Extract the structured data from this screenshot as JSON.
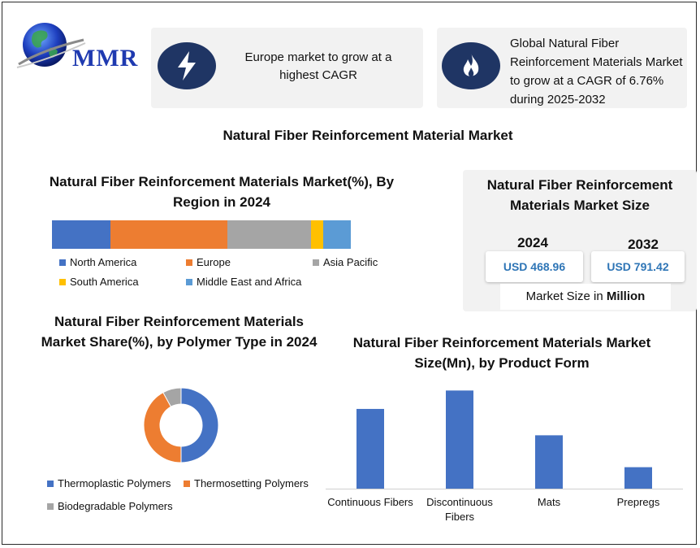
{
  "logo": {
    "text": "MMR"
  },
  "info_cards": [
    {
      "icon": "lightning-icon",
      "text": "Europe market to grow at a highest CAGR"
    },
    {
      "icon": "flame-icon",
      "text": "Global Natural Fiber Reinforcement Materials Market to grow at a CAGR of 6.76% during 2025-2032"
    }
  ],
  "main_title": "Natural Fiber Reinforcement Material Market",
  "market_size": {
    "title": "Natural Fiber Reinforcement Materials Market Size",
    "years": [
      {
        "year": "2024",
        "value": "USD 468.96"
      },
      {
        "year": "2032",
        "value": "USD 791.42"
      }
    ],
    "footer_prefix": "Market Size in ",
    "footer_bold": "Million"
  },
  "colors": {
    "blue": "#4472c4",
    "orange": "#ed7d31",
    "gray": "#a5a5a5",
    "yellow": "#ffc000",
    "lightblue": "#5b9bd5",
    "navy": "#1f3564"
  },
  "chart_data": [
    {
      "type": "bar",
      "orientation": "horizontal-stacked",
      "title": "Natural Fiber Reinforcement Materials Market(%), By Region in 2024",
      "series": [
        {
          "name": "North America",
          "values": [
            19
          ],
          "color": "#4472c4"
        },
        {
          "name": "Europe",
          "values": [
            38
          ],
          "color": "#ed7d31"
        },
        {
          "name": "Asia Pacific",
          "values": [
            27
          ],
          "color": "#a5a5a5"
        },
        {
          "name": "South America",
          "values": [
            4
          ],
          "color": "#ffc000"
        },
        {
          "name": "Middle East and Africa",
          "values": [
            9
          ],
          "color": "#5b9bd5"
        }
      ],
      "legend": "bottom"
    },
    {
      "type": "pie",
      "style": "donut",
      "title": "Natural Fiber Reinforcement Materials Market Share(%), by Polymer Type in 2024",
      "slices": [
        {
          "name": "Thermoplastic Polymers",
          "value": 50,
          "color": "#4472c4"
        },
        {
          "name": "Thermosetting Polymers",
          "value": 42,
          "color": "#ed7d31"
        },
        {
          "name": "Biodegradable Polymers",
          "value": 8,
          "color": "#a5a5a5"
        }
      ],
      "legend": "bottom"
    },
    {
      "type": "bar",
      "title": "Natural Fiber Reinforcement Materials Market Size(Mn), by Product Form",
      "categories": [
        "Continuous Fibers",
        "Discontinuous Fibers",
        "Mats",
        "Prepregs"
      ],
      "values": [
        130,
        160,
        87,
        35
      ],
      "ylim": [
        0,
        175
      ],
      "color": "#4472c4",
      "grid": false
    }
  ]
}
